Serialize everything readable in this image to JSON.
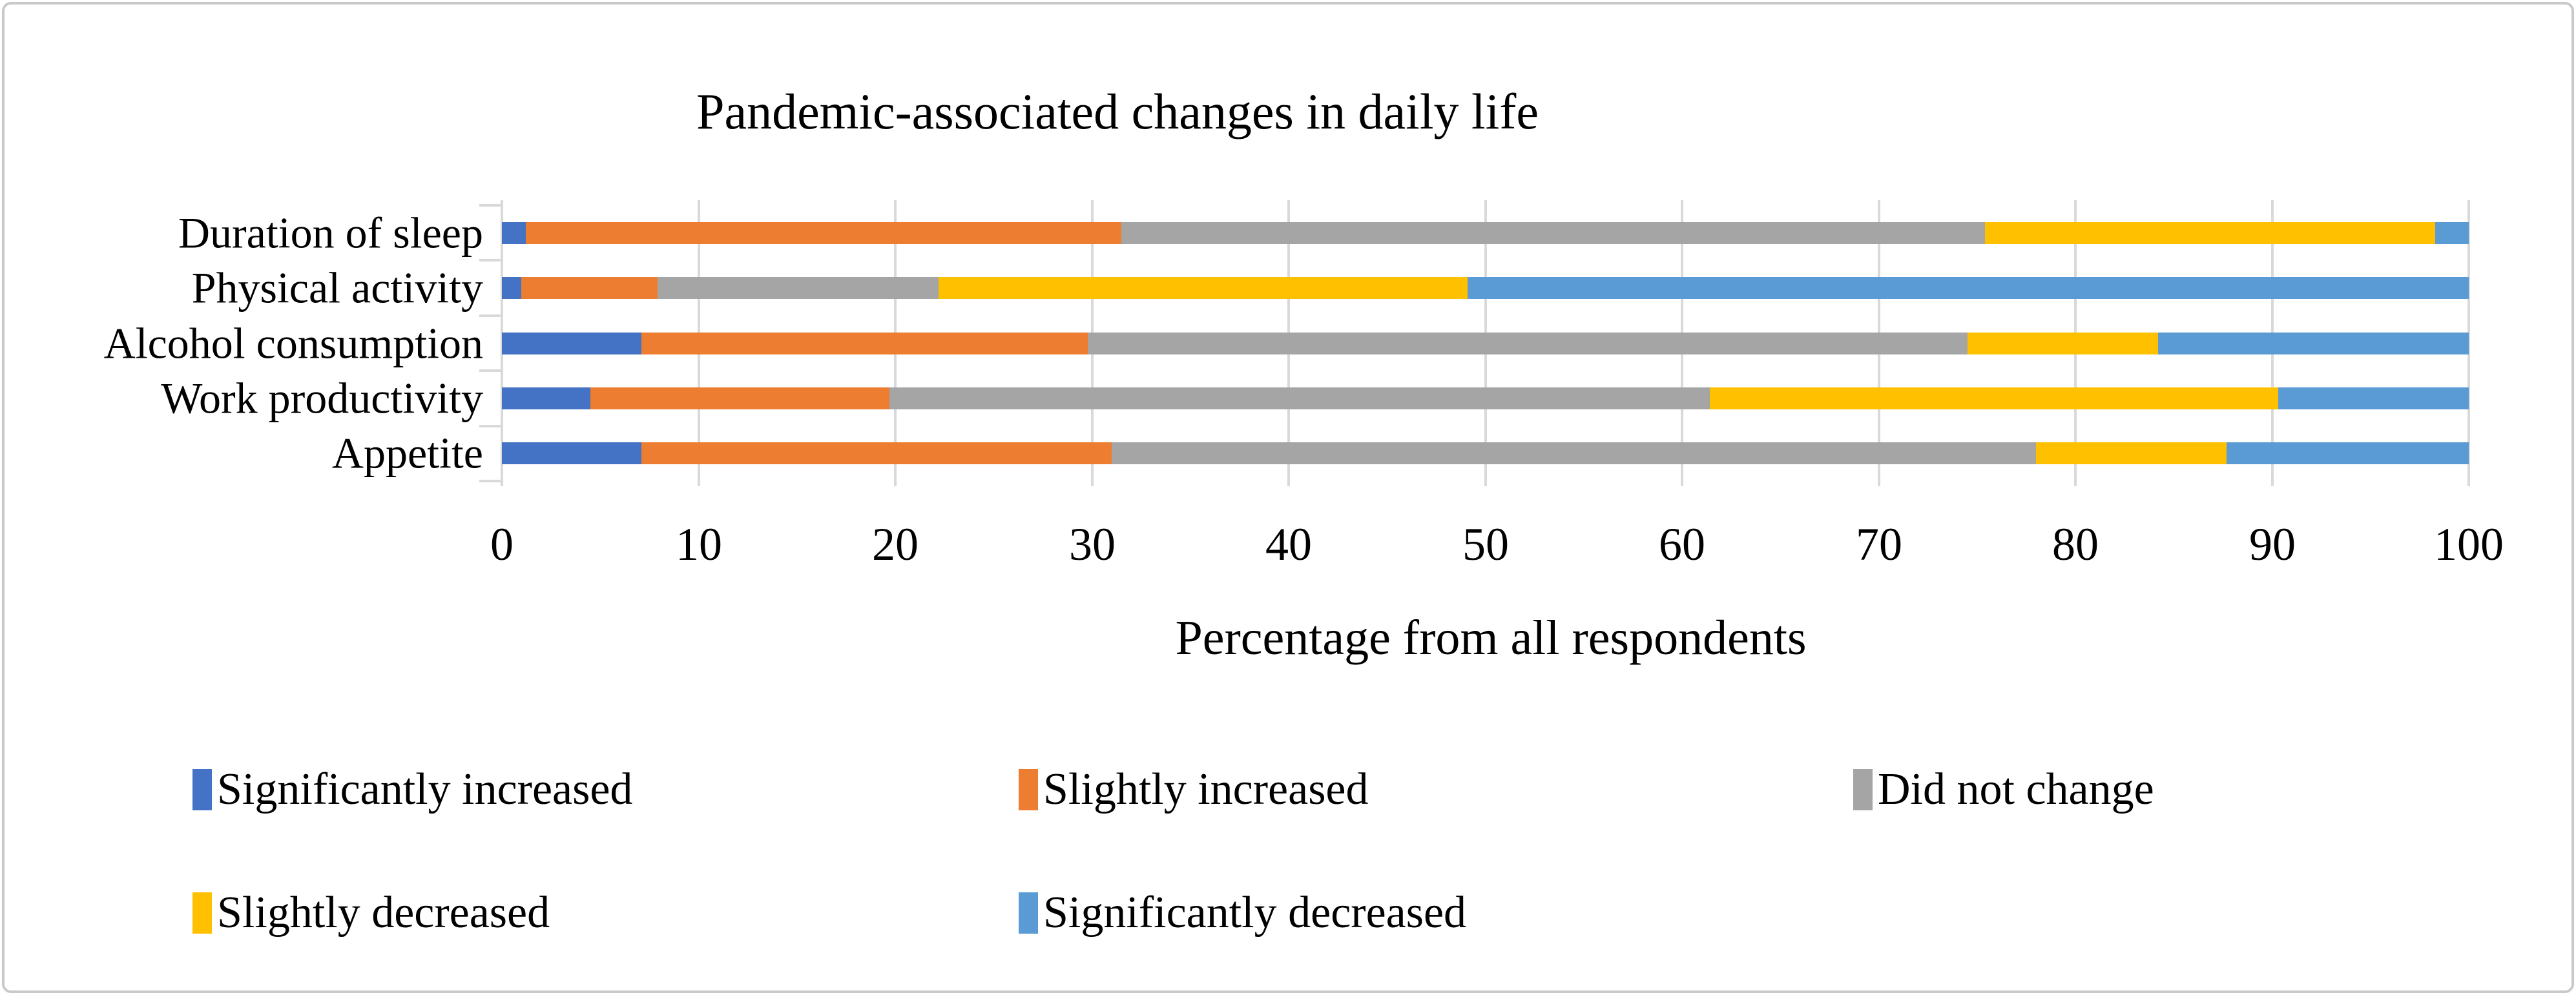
{
  "title": "Pandemic-associated changes in daily life",
  "chart_data": {
    "type": "bar",
    "orientation": "horizontal",
    "stacked": true,
    "title": "Pandemic-associated changes in daily life",
    "categories": [
      "Duration of sleep",
      "Physical activity",
      "Alcohol consumption",
      "Work productivity",
      "Appetite"
    ],
    "series": [
      {
        "name": "Significantly increased",
        "color": "#4472C4",
        "values": [
          1.2,
          1.0,
          7.1,
          4.5,
          7.1
        ]
      },
      {
        "name": "Slightly increased",
        "color": "#ED7D31",
        "values": [
          30.3,
          6.9,
          22.7,
          15.2,
          23.9
        ]
      },
      {
        "name": "Did not change",
        "color": "#A5A5A5",
        "values": [
          43.9,
          14.3,
          44.7,
          41.7,
          47.0
        ]
      },
      {
        "name": "Slightly decreased",
        "color": "#FFC000",
        "values": [
          22.9,
          26.9,
          9.7,
          28.9,
          9.7
        ]
      },
      {
        "name": "Significantly decreased",
        "color": "#5B9BD5",
        "values": [
          1.7,
          50.9,
          15.8,
          9.7,
          12.3
        ]
      }
    ],
    "xlabel": "Percentage from all respondents",
    "xlim": [
      0,
      100
    ],
    "xticks": [
      0,
      10,
      20,
      30,
      40,
      50,
      60,
      70,
      80,
      90,
      100
    ],
    "grid": true,
    "gridline_color": "#D9D9D9",
    "legend_position": "bottom",
    "background_color": "#FFFFFF",
    "text_color": "#000000"
  }
}
